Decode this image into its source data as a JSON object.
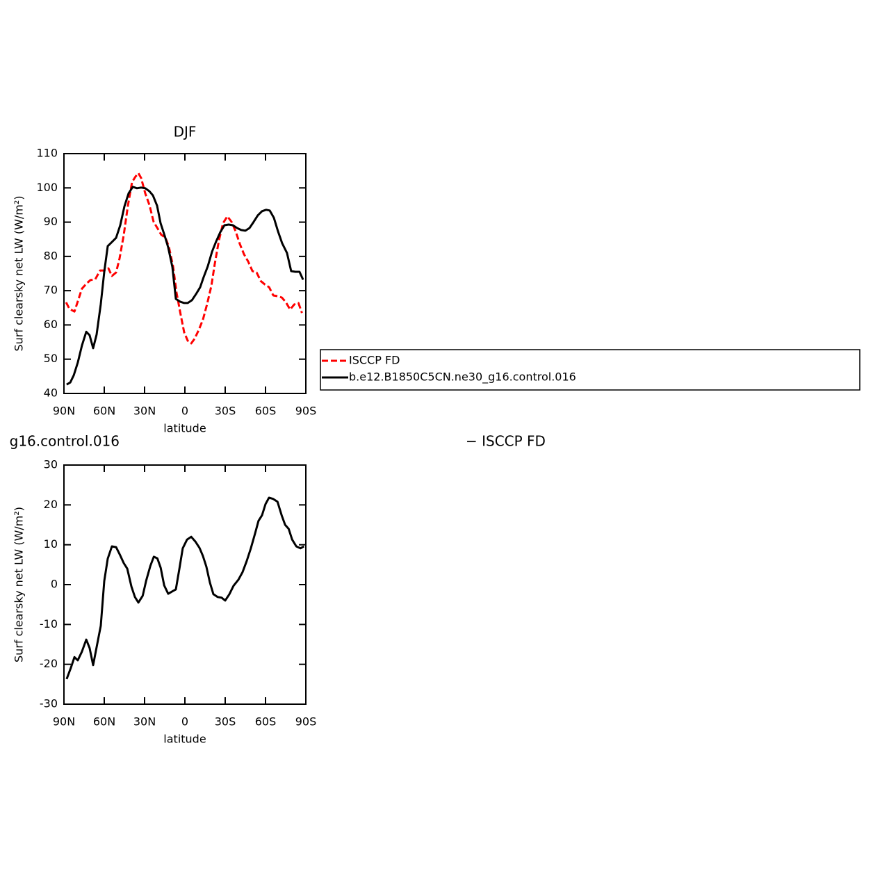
{
  "chart_data": [
    {
      "type": "line",
      "title": "DJF",
      "ylabel": "Surf clearsky net LW (W/m²)",
      "xlabel": "latitude",
      "xlim": [
        90,
        -90
      ],
      "xticks": [
        {
          "value": 90,
          "label": "90N"
        },
        {
          "value": 60,
          "label": "60N"
        },
        {
          "value": 30,
          "label": "30N"
        },
        0,
        {
          "value": -30,
          "label": "30S"
        },
        {
          "value": -60,
          "label": "60S"
        },
        {
          "value": -90,
          "label": "90S"
        }
      ],
      "ylim": [
        40,
        110
      ],
      "yticks": [
        40,
        50,
        60,
        70,
        80,
        90,
        100,
        110
      ],
      "legend_position": "right",
      "series": [
        {
          "name": "ISCCP FD",
          "color": "#ff0000",
          "line_style": "dashed",
          "x": [
            88.4,
            85.9,
            82.2,
            79.1,
            76.6,
            73.4,
            70.3,
            66.7,
            63.1,
            60,
            56.9,
            54.3,
            51.2,
            48.6,
            45.5,
            42.4,
            39.3,
            36.7,
            34.6,
            32.6,
            29.5,
            26.4,
            23.3,
            20.2,
            17.6,
            14.5,
            11.9,
            8.8,
            6.2,
            3.1,
            0.5,
            -2.1,
            -4.7,
            -7.3,
            -10.3,
            -13.4,
            -16.6,
            -19.7,
            -22.2,
            -25.3,
            -28.4,
            -31.6,
            -34.7,
            -37.8,
            -40.9,
            -44,
            -47.1,
            -50.3,
            -53.4,
            -56.5,
            -59.6,
            -62.7,
            -65.8,
            -68.9,
            -72.1,
            -75.2,
            -78.3,
            -81.4,
            -84.5,
            -87.1
          ],
          "values": [
            66.6,
            64.7,
            63.9,
            67.6,
            70.6,
            72,
            73.1,
            73.3,
            75.9,
            75.9,
            76.5,
            74.3,
            75.3,
            79.4,
            86.2,
            94.8,
            101.7,
            103.3,
            104.3,
            102.9,
            98.4,
            95,
            90.1,
            88.1,
            86.3,
            85.5,
            82.8,
            77.1,
            69.4,
            62.9,
            57.8,
            55.4,
            54.6,
            56,
            58.5,
            61.5,
            66.2,
            71.4,
            77.7,
            84.6,
            89.7,
            91.7,
            90.1,
            87.3,
            83.6,
            80.6,
            78.5,
            75.7,
            75.3,
            72.8,
            71.8,
            71,
            68.6,
            68.4,
            68,
            66.6,
            64.5,
            66,
            66.4,
            63.5
          ]
        },
        {
          "name": "b.e12.B1850C5CN.ne30_g16.control.016",
          "color": "#000000",
          "line_style": "solid",
          "x": [
            88,
            85.3,
            82.7,
            79.7,
            76.6,
            73.4,
            70.9,
            68.3,
            65.7,
            62.6,
            60,
            57.4,
            54.3,
            51.2,
            48.1,
            45,
            41.9,
            38.8,
            35.7,
            32.6,
            29.5,
            26.4,
            23.8,
            20.7,
            18.1,
            15,
            12.4,
            9.3,
            6.7,
            3.6,
            0.5,
            -2.1,
            -5.2,
            -8.3,
            -11.4,
            -13.9,
            -17,
            -20.2,
            -23.3,
            -26.4,
            -29.5,
            -32.6,
            -35.7,
            -38.8,
            -41.9,
            -45,
            -48.1,
            -51.2,
            -54.3,
            -57.4,
            -60.5,
            -63.1,
            -66.2,
            -69.3,
            -72.4,
            -76,
            -79.1,
            -82.2,
            -85.3,
            -88
          ],
          "values": [
            42.6,
            43.2,
            45.3,
            49,
            54,
            58,
            57,
            53.2,
            57.2,
            66.1,
            75.5,
            83,
            84.2,
            85.4,
            89.1,
            94.6,
            98.4,
            100.3,
            99.9,
            100.1,
            99.9,
            99,
            97.8,
            94.8,
            89.7,
            86,
            82.6,
            76.9,
            67.6,
            66.8,
            66.4,
            66.4,
            67.2,
            69,
            71,
            73.9,
            77.1,
            81.4,
            84.4,
            87.1,
            89.1,
            89.3,
            89.1,
            88.3,
            87.7,
            87.5,
            88.3,
            90.1,
            92,
            93.2,
            93.6,
            93.4,
            91.3,
            87.3,
            83.8,
            81,
            75.7,
            75.5,
            75.5,
            73.2
          ]
        }
      ]
    },
    {
      "type": "line",
      "title_left": "g16.control.016",
      "title_right": "− ISCCP FD",
      "ylabel": "Surf clearsky net LW (W/m²)",
      "xlabel": "latitude",
      "xlim": [
        90,
        -90
      ],
      "xticks": [
        {
          "value": 90,
          "label": "90N"
        },
        {
          "value": 60,
          "label": "60N"
        },
        {
          "value": 30,
          "label": "30N"
        },
        0,
        {
          "value": -30,
          "label": "30S"
        },
        {
          "value": -60,
          "label": "60S"
        },
        {
          "value": -90,
          "label": "90S"
        }
      ],
      "ylim": [
        -30,
        30
      ],
      "yticks": [
        -30,
        -20,
        -10,
        0,
        10,
        20,
        30
      ],
      "series": [
        {
          "color": "#000000",
          "line_style": "solid",
          "x": [
            88,
            84.8,
            82.2,
            79.7,
            76.6,
            73.4,
            70.9,
            68.3,
            65.7,
            62.6,
            60,
            57.4,
            54.3,
            51.2,
            48.1,
            45.5,
            42.9,
            39.8,
            37.2,
            34.6,
            31.4,
            28.8,
            25.7,
            23.1,
            20.5,
            18,
            15.4,
            12.4,
            9.3,
            6.7,
            4.1,
            1.6,
            -1.6,
            -4.7,
            -7.8,
            -10.9,
            -13.4,
            -16,
            -18.6,
            -21.2,
            -24.3,
            -27.4,
            -30,
            -33.1,
            -36.2,
            -39.8,
            -42.9,
            -46,
            -49.1,
            -52.3,
            -54.8,
            -57.4,
            -60,
            -62.6,
            -65.7,
            -68.9,
            -72,
            -74.6,
            -77.2,
            -79.8,
            -82.9,
            -86,
            -88.6
          ],
          "values": [
            -23.7,
            -20.8,
            -18.2,
            -19,
            -16.8,
            -13.8,
            -15.9,
            -20.2,
            -15.7,
            -10.3,
            0.9,
            6.5,
            9.6,
            9.4,
            7.3,
            5.4,
            4,
            -0.5,
            -3.1,
            -4.5,
            -2.8,
            1,
            4.7,
            7,
            6.6,
            4.2,
            -0.2,
            -2.3,
            -1.7,
            -1.2,
            4,
            9.1,
            11.3,
            12,
            10.8,
            9.2,
            7.2,
            4.5,
            0.5,
            -2.4,
            -3.1,
            -3.3,
            -4,
            -2.4,
            -0.3,
            1.2,
            3.1,
            5.9,
            9.1,
            12.9,
            16,
            17.4,
            20.2,
            21.8,
            21.5,
            20.8,
            17.4,
            15,
            14,
            11.3,
            9.6,
            9.1,
            9.6
          ]
        }
      ]
    }
  ]
}
